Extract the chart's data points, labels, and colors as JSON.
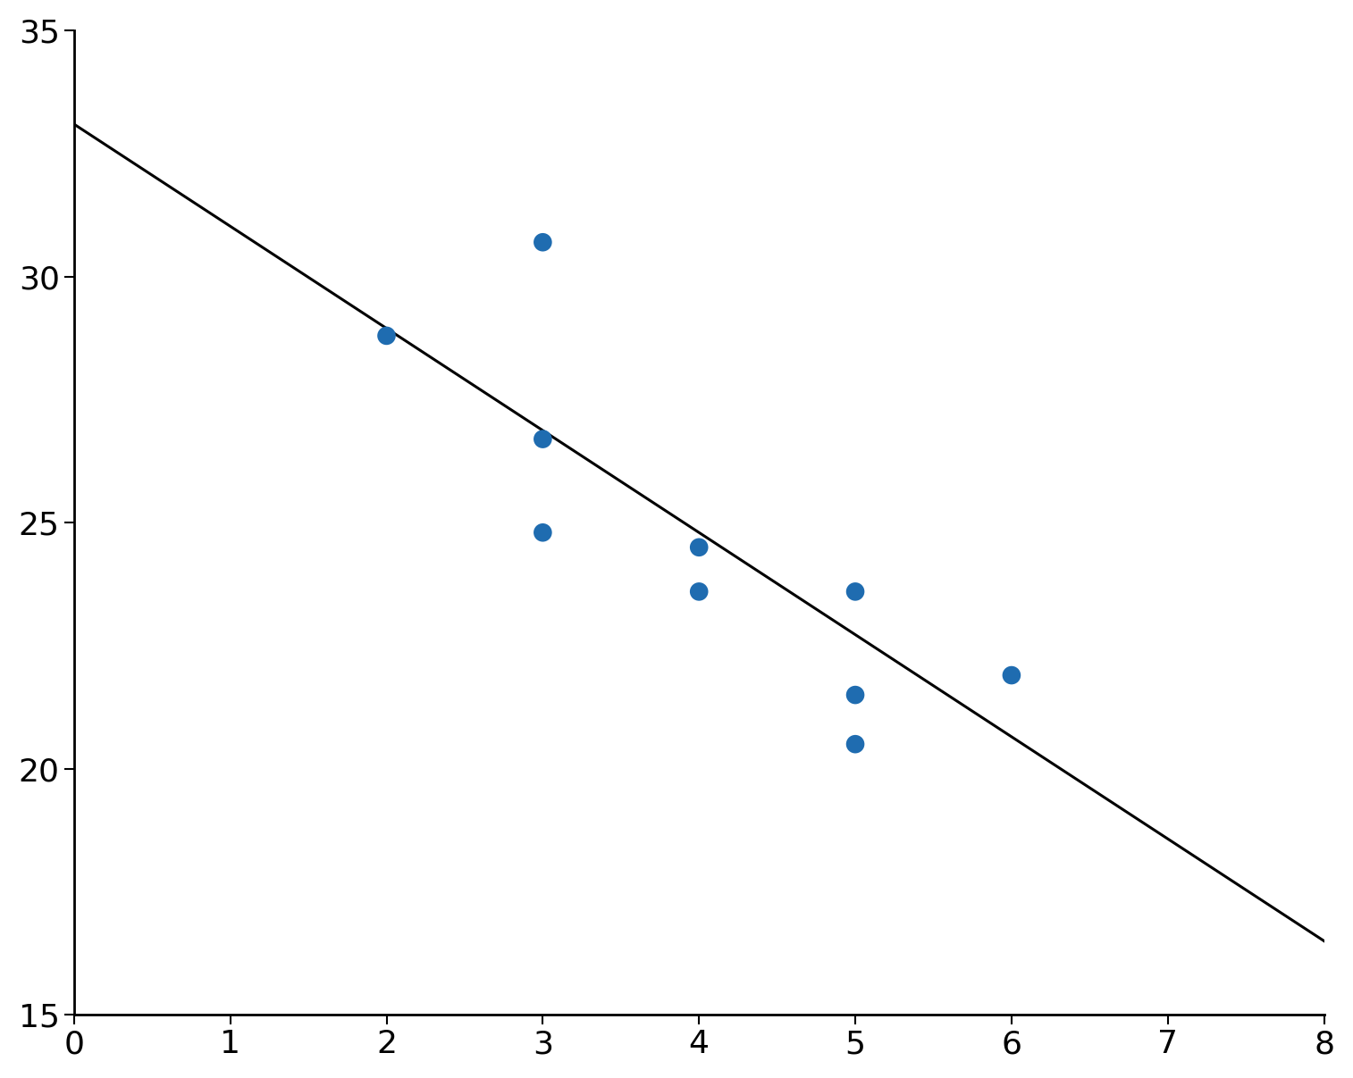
{
  "scatter_x": [
    2,
    3,
    3,
    3,
    4,
    4,
    5,
    5,
    5,
    6
  ],
  "scatter_y": [
    28.8,
    30.7,
    26.7,
    24.8,
    24.5,
    23.6,
    23.6,
    21.5,
    20.5,
    21.9
  ],
  "line_x": [
    0,
    8
  ],
  "line_y": [
    33.1,
    16.5
  ],
  "scatter_color": "#1f6cb0",
  "line_color": "#000000",
  "xlim": [
    0,
    8
  ],
  "ylim": [
    15,
    35
  ],
  "xticks": [
    0,
    1,
    2,
    3,
    4,
    5,
    6,
    7,
    8
  ],
  "yticks": [
    15,
    20,
    25,
    30,
    35
  ],
  "marker_size": 220,
  "line_width": 2.2,
  "background_color": "#ffffff",
  "tick_labelsize": 26,
  "spine_linewidth": 2.0
}
